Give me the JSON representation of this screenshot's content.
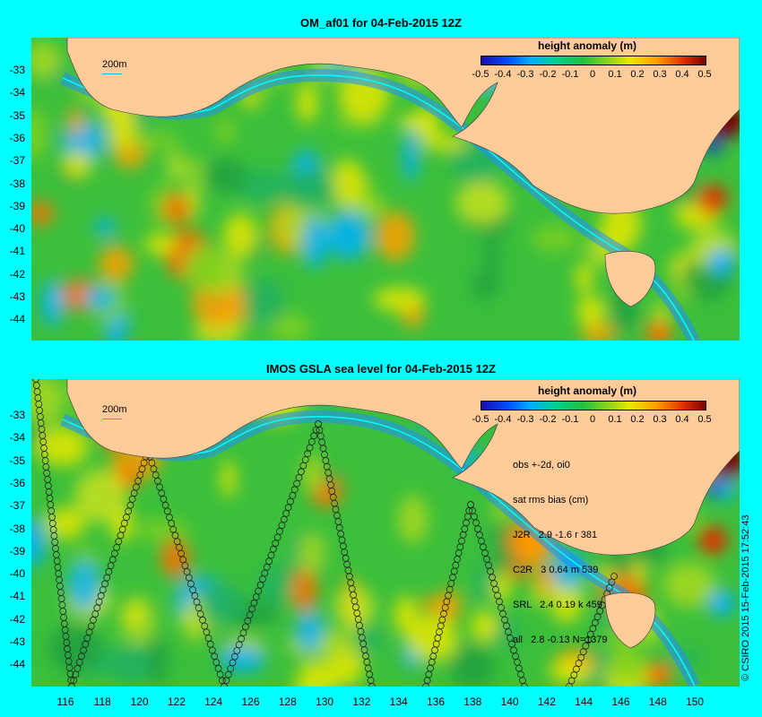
{
  "top": {
    "title": "OM_af01 for 04-Feb-2015 12Z",
    "y_ticks": [
      "-33",
      "-34",
      "-35",
      "-36",
      "-37",
      "-38",
      "-39",
      "-40",
      "-41",
      "-42",
      "-43",
      "-44"
    ],
    "legend_title": "height anomaly (m)",
    "colorbar_ticks": [
      "-0.5",
      "-0.4",
      "-0.3",
      "-0.2",
      "-0.1",
      "0",
      "0.1",
      "0.2",
      "0.3",
      "0.4",
      "0.5"
    ],
    "scale_label": "200m"
  },
  "bottom": {
    "title": "IMOS GSLA sea level  for 04-Feb-2015 12Z",
    "y_ticks": [
      "-33",
      "-34",
      "-35",
      "-36",
      "-37",
      "-38",
      "-39",
      "-40",
      "-41",
      "-42",
      "-43",
      "-44"
    ],
    "x_ticks": [
      "116",
      "118",
      "120",
      "122",
      "124",
      "126",
      "128",
      "130",
      "132",
      "134",
      "136",
      "138",
      "140",
      "142",
      "144",
      "146",
      "148",
      "150"
    ],
    "legend_title": "height anomaly (m)",
    "colorbar_ticks": [
      "-0.5",
      "-0.4",
      "-0.3",
      "-0.2",
      "-0.1",
      "0",
      "0.1",
      "0.2",
      "0.3",
      "0.4",
      "0.5"
    ],
    "scale_label": "200m",
    "stats": [
      "obs +-2d, oi0",
      "sat rms bias (cm)",
      "J2R   2.9 -1.6 r 381",
      "C2R   3 0.64 m 539",
      "SRL   2.4 0.19 k 459",
      "all   2.8 -0.13 N=1379"
    ],
    "credit": "© CSIRO 2015  15-Feb-2015 17:52:43"
  },
  "colors": {
    "background": "#00ffff",
    "land": "#ffcc99",
    "ocean_base": "#40c040",
    "shelf": "#1e90ff"
  }
}
